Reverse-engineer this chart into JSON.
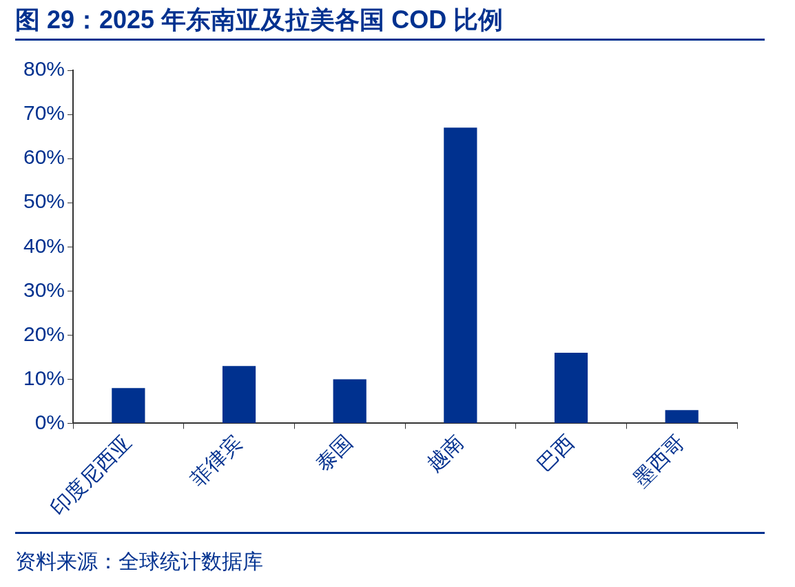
{
  "chart_data": {
    "type": "bar",
    "title": "图 29：2025 年东南亚及拉美各国 COD 比例",
    "categories": [
      "印度尼西亚",
      "菲律宾",
      "泰国",
      "越南",
      "巴西",
      "墨西哥"
    ],
    "values": [
      8,
      13,
      10,
      67,
      16,
      3
    ],
    "color": "#00318f",
    "ylim": [
      0,
      80
    ],
    "yticks": [
      {
        "value": 0,
        "label": "0%"
      },
      {
        "value": 10,
        "label": "10%"
      },
      {
        "value": 20,
        "label": "20%"
      },
      {
        "value": 30,
        "label": "30%"
      },
      {
        "value": 40,
        "label": "40%"
      },
      {
        "value": 50,
        "label": "50%"
      },
      {
        "value": 60,
        "label": "60%"
      },
      {
        "value": 70,
        "label": "70%"
      },
      {
        "value": 80,
        "label": "80%"
      }
    ],
    "grid": false,
    "legend": false,
    "annotations": [
      "资料来源：全球统计数据库"
    ]
  }
}
